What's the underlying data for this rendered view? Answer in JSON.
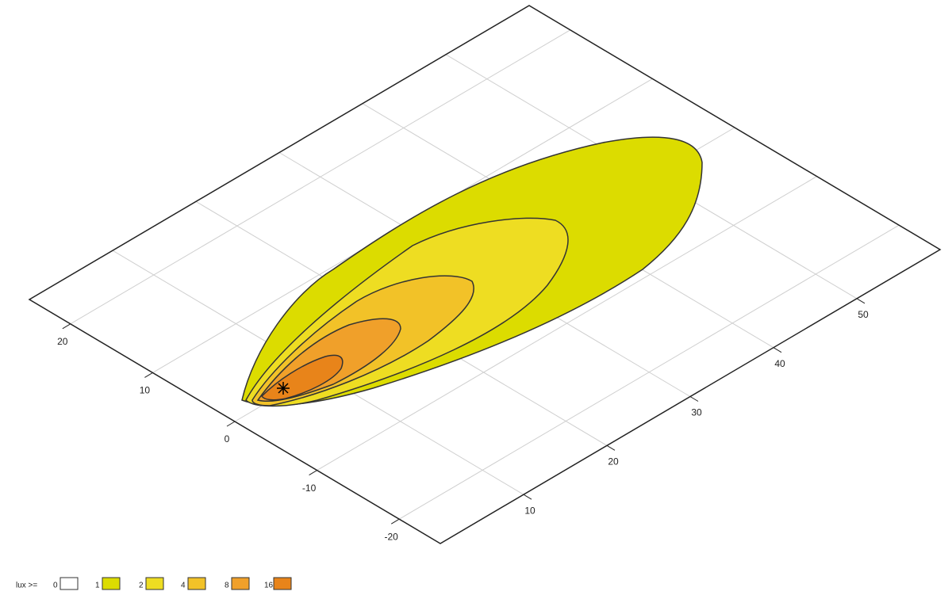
{
  "chart_data": {
    "type": "contour",
    "legend_title": "lux >=",
    "levels": [
      0,
      1,
      2,
      4,
      8,
      16
    ],
    "colors": [
      "#ffffff",
      "#dcdc00",
      "#eedd22",
      "#f2c228",
      "#f0a02a",
      "#e8841a"
    ],
    "xlim": [
      25,
      -25
    ],
    "xticks": [
      20,
      10,
      0,
      -10,
      -20
    ],
    "ylim": [
      0,
      60
    ],
    "yticks": [
      10,
      20,
      30,
      40,
      50
    ],
    "grid": true
  }
}
